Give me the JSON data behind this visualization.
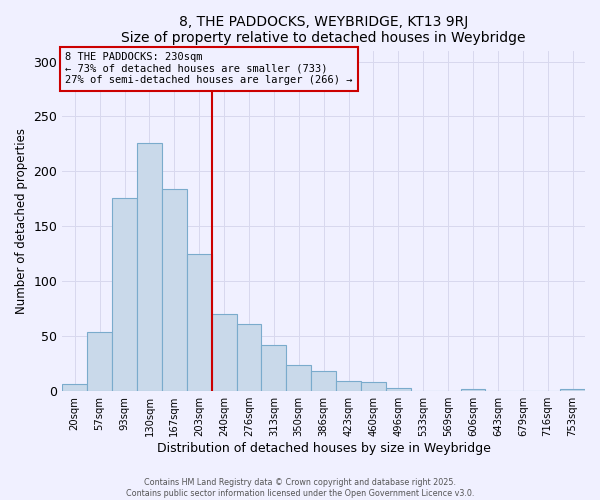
{
  "title": "8, THE PADDOCKS, WEYBRIDGE, KT13 9RJ",
  "subtitle": "Size of property relative to detached houses in Weybridge",
  "xlabel": "Distribution of detached houses by size in Weybridge",
  "ylabel": "Number of detached properties",
  "bar_labels": [
    "20sqm",
    "57sqm",
    "93sqm",
    "130sqm",
    "167sqm",
    "203sqm",
    "240sqm",
    "276sqm",
    "313sqm",
    "350sqm",
    "386sqm",
    "423sqm",
    "460sqm",
    "496sqm",
    "533sqm",
    "569sqm",
    "606sqm",
    "643sqm",
    "679sqm",
    "716sqm",
    "753sqm"
  ],
  "bar_values": [
    7,
    54,
    176,
    226,
    184,
    125,
    70,
    61,
    42,
    24,
    18,
    9,
    8,
    3,
    0,
    0,
    2,
    0,
    0,
    0,
    2
  ],
  "bar_color": "#c9d9ea",
  "bar_edgecolor": "#7aabcc",
  "ylim": [
    0,
    310
  ],
  "yticks": [
    0,
    50,
    100,
    150,
    200,
    250,
    300
  ],
  "vline_color": "#cc0000",
  "annotation_title": "8 THE PADDOCKS: 230sqm",
  "annotation_line1": "← 73% of detached houses are smaller (733)",
  "annotation_line2": "27% of semi-detached houses are larger (266) →",
  "annotation_box_edgecolor": "#cc0000",
  "footer1": "Contains HM Land Registry data © Crown copyright and database right 2025.",
  "footer2": "Contains public sector information licensed under the Open Government Licence v3.0.",
  "background_color": "#f0f0ff",
  "grid_color": "#d8d8ee"
}
